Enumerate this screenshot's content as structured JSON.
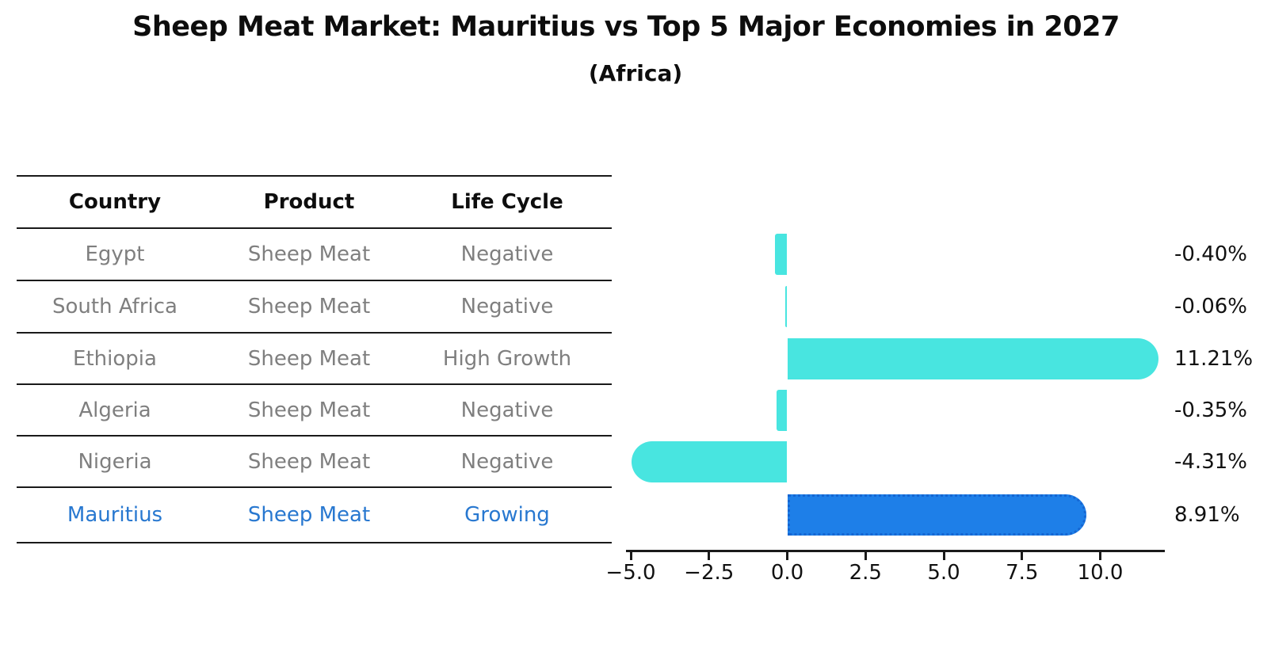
{
  "title": "Sheep Meat Market: Mauritius vs Top 5 Major Economies in 2027",
  "subtitle": "(Africa)",
  "table": {
    "headers": [
      "Country",
      "Product",
      "Life Cycle"
    ],
    "rows": [
      {
        "country": "Egypt",
        "product": "Sheep Meat",
        "life_cycle": "Negative",
        "highlight": false
      },
      {
        "country": "South Africa",
        "product": "Sheep Meat",
        "life_cycle": "Negative",
        "highlight": false
      },
      {
        "country": "Ethiopia",
        "product": "Sheep Meat",
        "life_cycle": "High Growth",
        "highlight": false
      },
      {
        "country": "Algeria",
        "product": "Sheep Meat",
        "life_cycle": "Negative",
        "highlight": false
      },
      {
        "country": "Nigeria",
        "product": "Sheep Meat",
        "life_cycle": "Negative",
        "highlight": false
      },
      {
        "country": "Mauritius",
        "product": "Sheep Meat",
        "life_cycle": "Growing",
        "highlight": true
      }
    ]
  },
  "chart_data": {
    "type": "bar",
    "orientation": "horizontal",
    "title": "Sheep Meat Market: Mauritius vs Top 5 Major Economies in 2027 (Africa)",
    "categories": [
      "Egypt",
      "South Africa",
      "Ethiopia",
      "Algeria",
      "Nigeria",
      "Mauritius"
    ],
    "values": [
      -0.4,
      -0.06,
      11.21,
      -0.35,
      -4.31,
      8.91
    ],
    "value_labels": [
      "-0.40%",
      "-0.06%",
      "11.21%",
      "-0.35%",
      "-4.31%",
      "8.91%"
    ],
    "unit": "%",
    "xticks": [
      -5.0,
      -2.5,
      0.0,
      2.5,
      5.0,
      7.5,
      10.0
    ],
    "xtick_labels": [
      "−5.0",
      "−2.5",
      "0.0",
      "2.5",
      "5.0",
      "7.5",
      "10.0"
    ],
    "xlim": [
      -5.2,
      12.1
    ],
    "grid": false,
    "legend": "none",
    "bar_color": "#48e5e0",
    "highlight_bar_color": "#1e7fe8",
    "highlight_index": 5
  },
  "colors": {
    "accent_cyan": "#48e5e0",
    "accent_blue": "#1e7fe8",
    "highlight_text": "#2878d0",
    "muted_text": "#7f7f7f",
    "text": "#0d0d0d"
  }
}
